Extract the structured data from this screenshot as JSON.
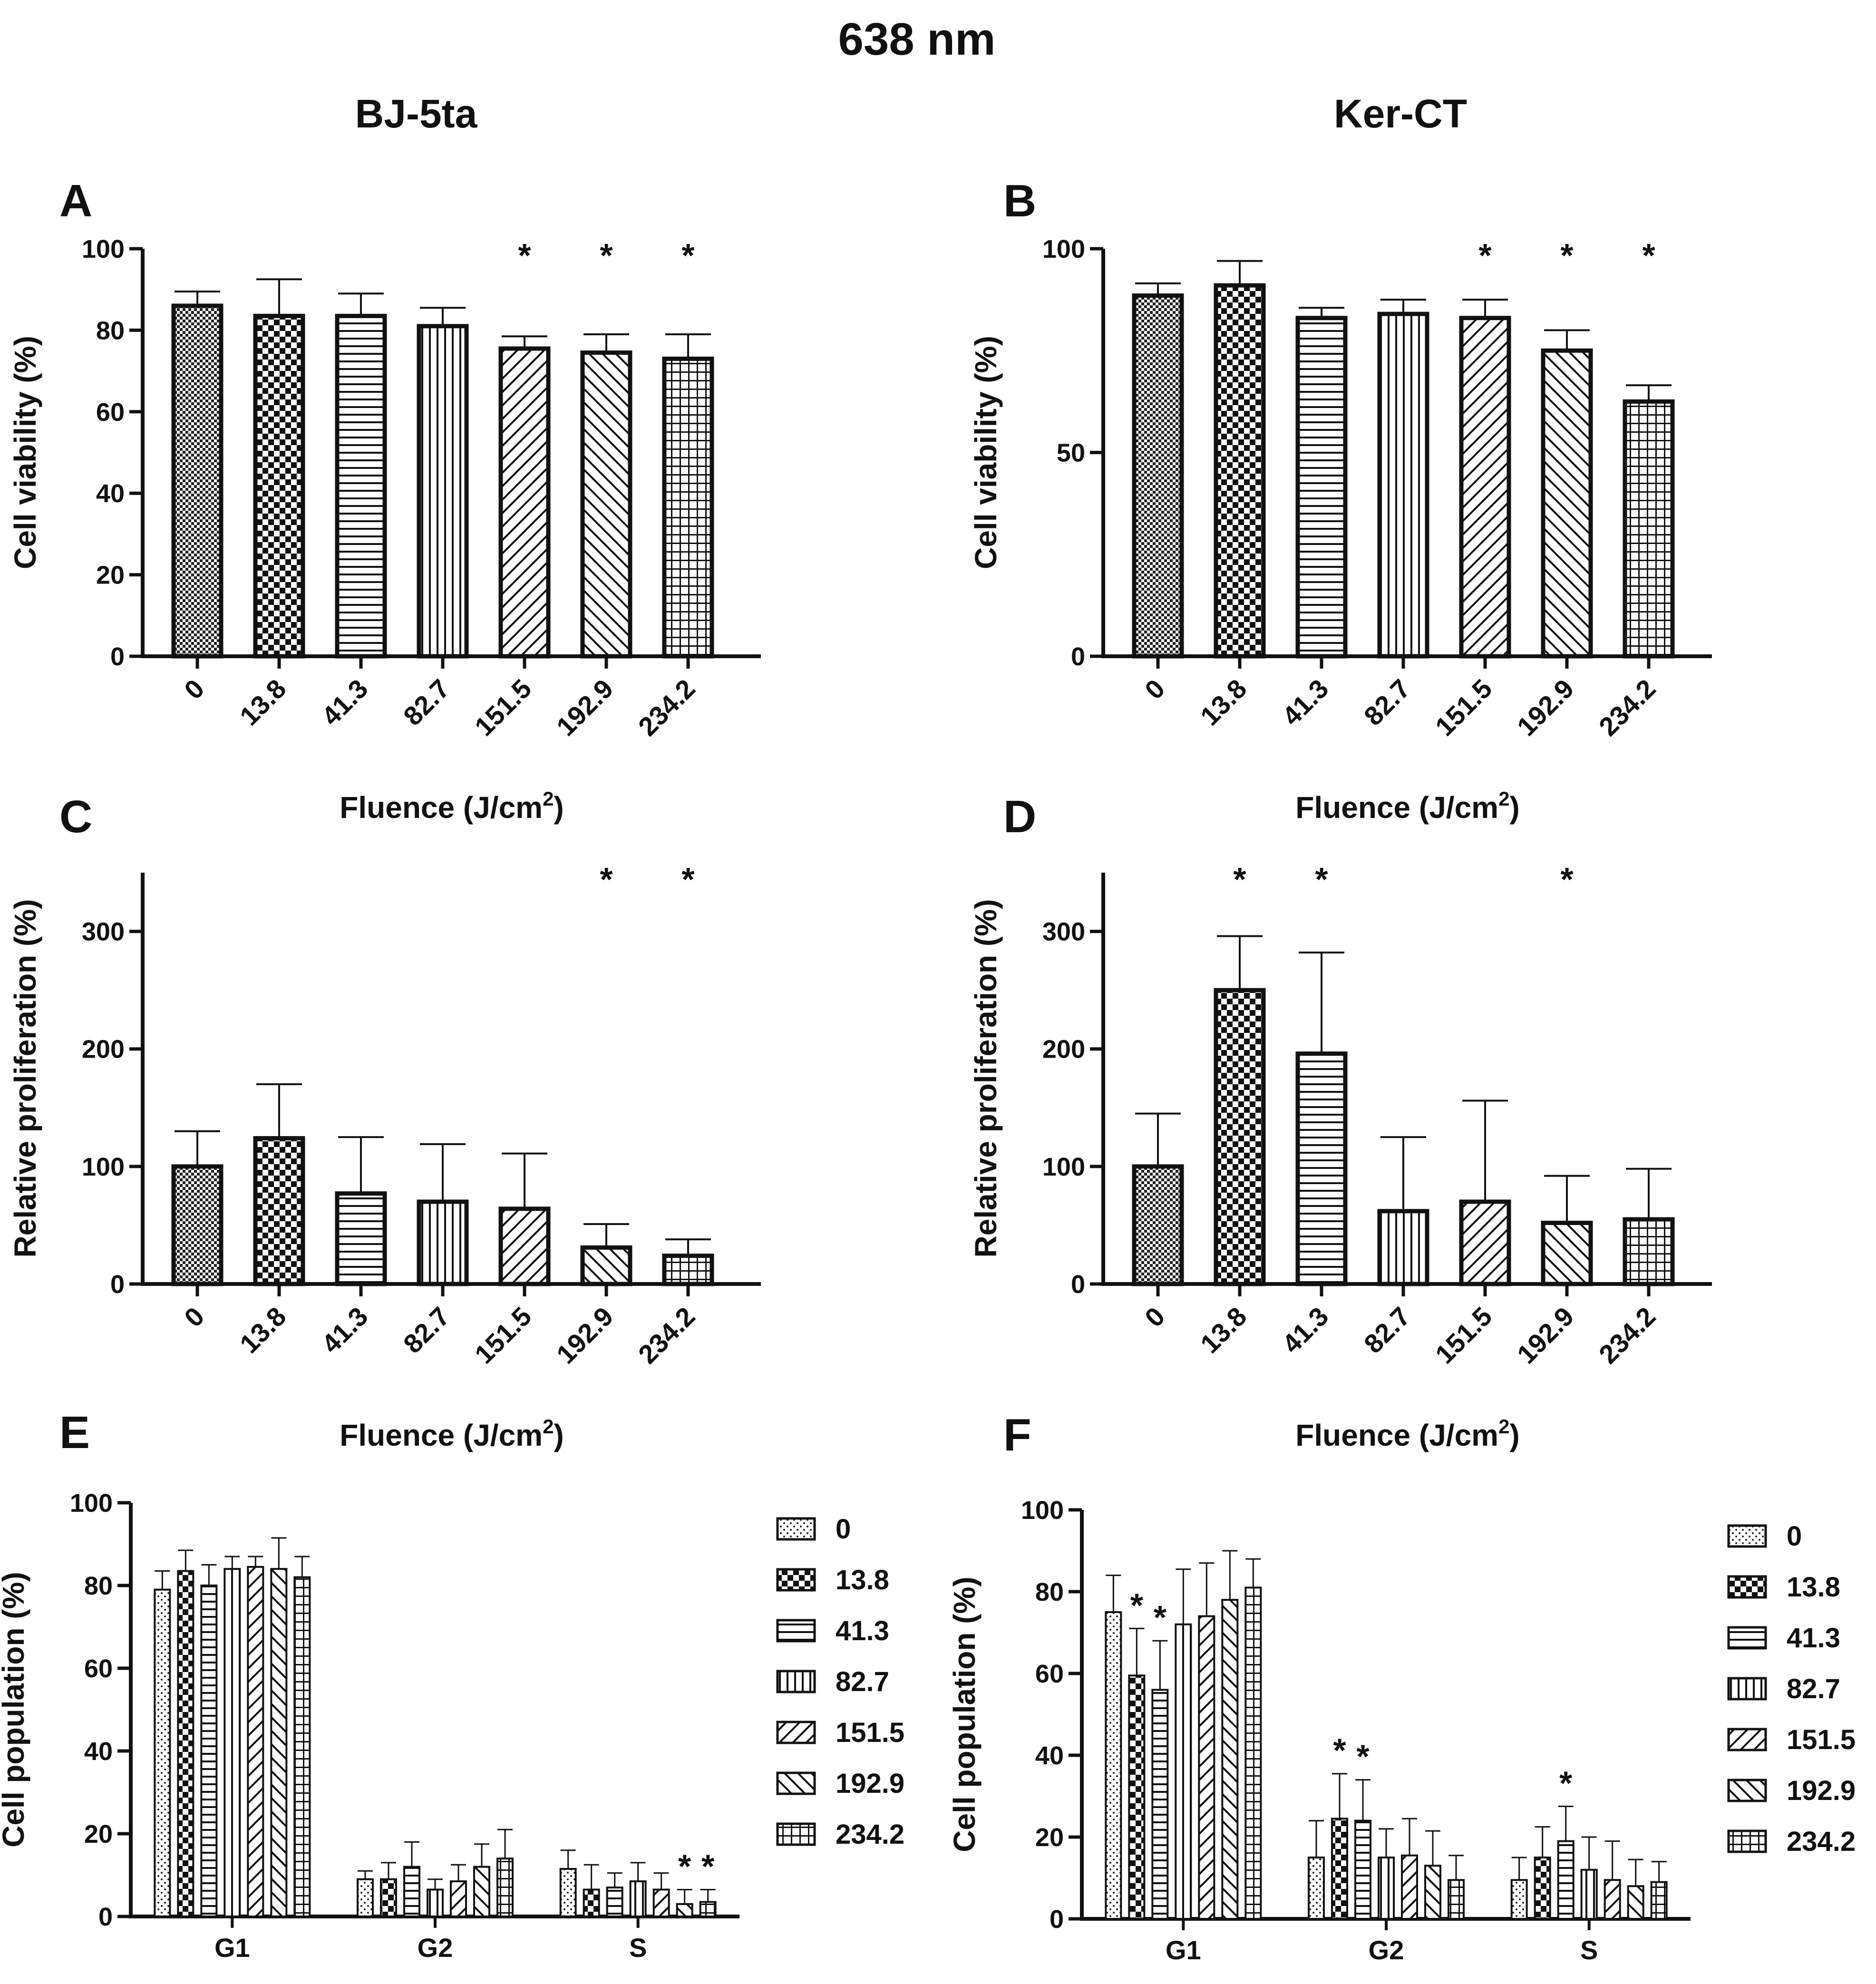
{
  "figure": {
    "title": "638 nm",
    "columns": [
      "BJ-5ta",
      "Ker-CT"
    ]
  },
  "legend": {
    "labels": [
      "0",
      "13.8",
      "41.3",
      "82.7",
      "151.5",
      "192.9",
      "234.2"
    ]
  },
  "chart_data": [
    {
      "panel": "A",
      "type": "bar",
      "ylabel": "Cell viability (%)",
      "xlabel": "Fluence (J/cm2)",
      "categories": [
        "0",
        "13.8",
        "41.3",
        "82.7",
        "151.5",
        "192.9",
        "234.2"
      ],
      "values": [
        86,
        83.5,
        83.5,
        81,
        75.5,
        74.5,
        73
      ],
      "errors": [
        3.5,
        9,
        5.5,
        4.5,
        3,
        4.5,
        6
      ],
      "significant": [
        false,
        false,
        false,
        false,
        true,
        true,
        true
      ],
      "ylim": [
        0,
        100
      ],
      "yticks": [
        0,
        20,
        40,
        60,
        80,
        100
      ]
    },
    {
      "panel": "B",
      "type": "bar",
      "ylabel": "Cell viability (%)",
      "xlabel": "Fluence (J/cm2)",
      "categories": [
        "0",
        "13.8",
        "41.3",
        "82.7",
        "151.5",
        "192.9",
        "234.2"
      ],
      "values": [
        88.5,
        91,
        83,
        84,
        83,
        75,
        62.5
      ],
      "errors": [
        3,
        6,
        2.5,
        3.5,
        4.5,
        5,
        4
      ],
      "significant": [
        false,
        false,
        false,
        false,
        true,
        true,
        true
      ],
      "ylim": [
        0,
        100
      ],
      "yticks": [
        0,
        50,
        100
      ]
    },
    {
      "panel": "C",
      "type": "bar",
      "ylabel": "Relative proliferation (%)",
      "xlabel": "Fluence (J/cm2)",
      "categories": [
        "0",
        "13.8",
        "41.3",
        "82.7",
        "151.5",
        "192.9",
        "234.2"
      ],
      "values": [
        100,
        124,
        77,
        70,
        64,
        31,
        24
      ],
      "errors": [
        30,
        46,
        48,
        49,
        47,
        20,
        14
      ],
      "significant": [
        false,
        false,
        false,
        false,
        false,
        true,
        true
      ],
      "ylim": [
        0,
        350
      ],
      "yticks": [
        0,
        100,
        200,
        300
      ]
    },
    {
      "panel": "D",
      "type": "bar",
      "ylabel": "Relative proliferation (%)",
      "xlabel": "Fluence (J/cm2)",
      "categories": [
        "0",
        "13.8",
        "41.3",
        "82.7",
        "151.5",
        "192.9",
        "234.2"
      ],
      "values": [
        100,
        250,
        196,
        62,
        70,
        52,
        55
      ],
      "errors": [
        45,
        46,
        86,
        63,
        86,
        40,
        43
      ],
      "significant": [
        false,
        true,
        true,
        false,
        false,
        true,
        false
      ],
      "ylim": [
        0,
        350
      ],
      "yticks": [
        0,
        100,
        200,
        300
      ]
    },
    {
      "panel": "E",
      "type": "bar",
      "ylabel": "Cell population (%)",
      "categories": [
        "G1",
        "G2",
        "S"
      ],
      "series": [
        {
          "name": "0",
          "values": [
            79,
            9,
            11.5
          ],
          "errors": [
            4.5,
            2,
            4.5
          ],
          "significant": [
            false,
            false,
            false
          ]
        },
        {
          "name": "13.8",
          "values": [
            83.5,
            9,
            6.5
          ],
          "errors": [
            5,
            4,
            6
          ],
          "significant": [
            false,
            false,
            false
          ]
        },
        {
          "name": "41.3",
          "values": [
            80,
            12,
            7
          ],
          "errors": [
            5,
            6,
            3.5
          ],
          "significant": [
            false,
            false,
            false
          ]
        },
        {
          "name": "82.7",
          "values": [
            84,
            6.5,
            8.5
          ],
          "errors": [
            3,
            2.5,
            4.5
          ],
          "significant": [
            false,
            false,
            false
          ]
        },
        {
          "name": "151.5",
          "values": [
            84.5,
            8.5,
            6.5
          ],
          "errors": [
            2.5,
            4,
            4
          ],
          "significant": [
            false,
            false,
            false
          ]
        },
        {
          "name": "192.9",
          "values": [
            84,
            12,
            3
          ],
          "errors": [
            7.5,
            5.5,
            3.5
          ],
          "significant": [
            false,
            false,
            true
          ]
        },
        {
          "name": "234.2",
          "values": [
            82,
            14,
            3.5
          ],
          "errors": [
            5,
            7,
            3
          ],
          "significant": [
            false,
            false,
            true
          ]
        }
      ],
      "ylim": [
        0,
        100
      ],
      "yticks": [
        0,
        20,
        40,
        60,
        80,
        100
      ]
    },
    {
      "panel": "F",
      "type": "bar",
      "ylabel": "Cell population (%)",
      "categories": [
        "G1",
        "G2",
        "S"
      ],
      "series": [
        {
          "name": "0",
          "values": [
            75,
            15,
            9.5
          ],
          "errors": [
            9,
            9,
            5.5
          ],
          "significant": [
            false,
            false,
            false
          ]
        },
        {
          "name": "13.8",
          "values": [
            59.5,
            24.5,
            15
          ],
          "errors": [
            11.5,
            11,
            7.5
          ],
          "significant": [
            true,
            true,
            false
          ]
        },
        {
          "name": "41.3",
          "values": [
            56,
            24,
            19
          ],
          "errors": [
            12,
            10,
            8.5
          ],
          "significant": [
            true,
            true,
            true
          ]
        },
        {
          "name": "82.7",
          "values": [
            72,
            15,
            12
          ],
          "errors": [
            13.5,
            7,
            8
          ],
          "significant": [
            false,
            false,
            false
          ]
        },
        {
          "name": "151.5",
          "values": [
            74,
            15.5,
            9.5
          ],
          "errors": [
            13,
            9,
            9.5
          ],
          "significant": [
            false,
            false,
            false
          ]
        },
        {
          "name": "192.9",
          "values": [
            78,
            13,
            8
          ],
          "errors": [
            12,
            8.5,
            6.5
          ],
          "significant": [
            false,
            false,
            false
          ]
        },
        {
          "name": "234.2",
          "values": [
            81,
            9.5,
            9
          ],
          "errors": [
            7,
            6,
            5
          ],
          "significant": [
            false,
            false,
            false
          ]
        }
      ],
      "ylim": [
        0,
        100
      ],
      "yticks": [
        0,
        20,
        40,
        60,
        80,
        100
      ]
    }
  ]
}
